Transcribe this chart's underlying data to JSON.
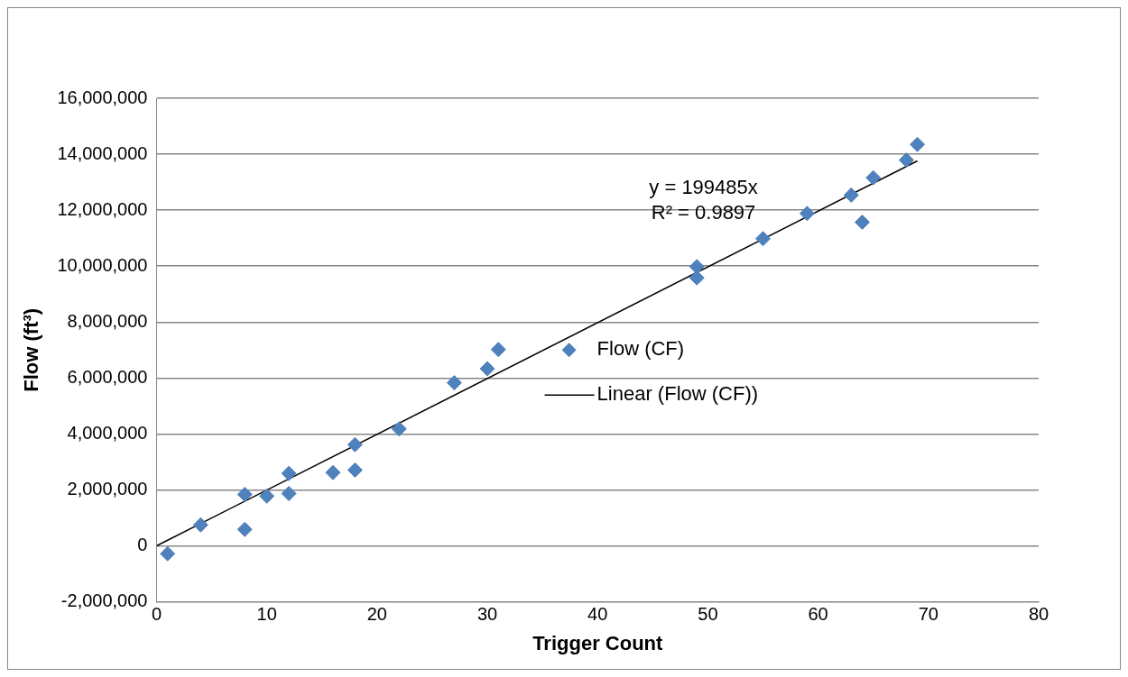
{
  "chart_data": {
    "type": "scatter",
    "xlabel": "Trigger Count",
    "ylabel": "Flow (ft³)",
    "xlim": [
      0,
      80
    ],
    "xticks": [
      0,
      10,
      20,
      30,
      40,
      50,
      60,
      70,
      80
    ],
    "ylim": [
      -2000000,
      16000000
    ],
    "yticks": [
      {
        "value": -2000000,
        "label": "-2,000,000"
      },
      0,
      {
        "value": 2000000,
        "label": "2,000,000"
      },
      {
        "value": 4000000,
        "label": "4,000,000"
      },
      {
        "value": 6000000,
        "label": "6,000,000"
      },
      {
        "value": 8000000,
        "label": "8,000,000"
      },
      {
        "value": 10000000,
        "label": "10,000,000"
      },
      {
        "value": 12000000,
        "label": "12,000,000"
      },
      {
        "value": 14000000,
        "label": "14,000,000"
      },
      {
        "value": 16000000,
        "label": "16,000,000"
      }
    ],
    "grid": "y",
    "legend": "right",
    "marker": "diamond",
    "annotations": [
      "y = 199485x",
      "R² = 0.9897"
    ],
    "series": [
      {
        "name": "Flow (CF)",
        "color": "#4f81bd",
        "type": "scatter",
        "x": [
          1,
          4,
          8,
          8,
          10,
          12,
          12,
          16,
          18,
          18,
          22,
          27,
          30,
          31,
          49,
          49,
          55,
          59,
          63,
          64,
          65,
          68,
          69
        ],
        "values": [
          -280000,
          750000,
          1840000,
          590000,
          1780000,
          2590000,
          1870000,
          2620000,
          3620000,
          2710000,
          4180000,
          5830000,
          6330000,
          7020000,
          9980000,
          9580000,
          10980000,
          11880000,
          12540000,
          11570000,
          13160000,
          13790000,
          14350000
        ]
      },
      {
        "name": "Linear (Flow (CF))",
        "color": "#000000",
        "type": "line",
        "marker": "none",
        "x": [
          0,
          69
        ],
        "values": [
          0,
          13760000
        ]
      }
    ]
  }
}
